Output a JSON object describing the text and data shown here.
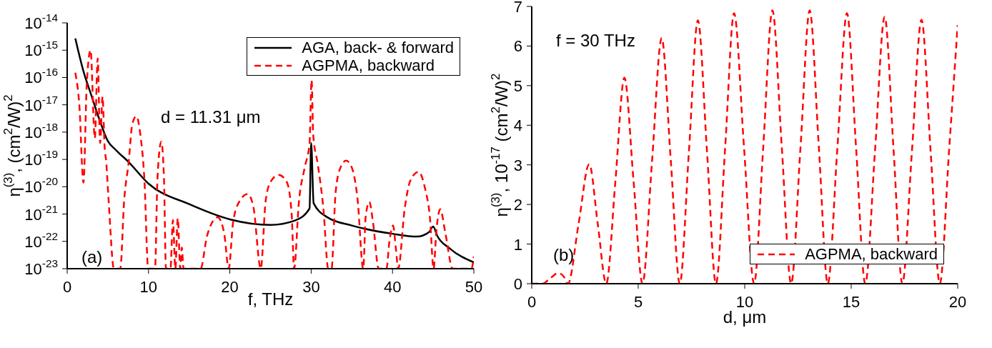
{
  "chart_data": [
    {
      "type": "line",
      "xlabel": "f, THz",
      "ylabel": "η$^{(3)}$, (cm$^{2}$/W)$^{2}$",
      "log": "y",
      "legend": "top right",
      "annotations": [
        "d = 11.31 μm",
        "(a)"
      ],
      "xlim": [
        0,
        50
      ],
      "xticks": [
        0,
        10,
        20,
        30,
        40,
        50
      ],
      "ylim": [
        1e-23,
        1e-14
      ],
      "yticks": [
        {
          "value": 1e-23,
          "label": "10$^{-23}$"
        },
        {
          "value": 1e-22,
          "label": "10$^{-22}$"
        },
        {
          "value": 1e-21,
          "label": "10$^{-21}$"
        },
        {
          "value": 1e-20,
          "label": "10$^{-20}$"
        },
        {
          "value": 1e-19,
          "label": "10$^{-19}$"
        },
        {
          "value": 1e-18,
          "label": "10$^{-18}$"
        },
        {
          "value": 1e-17,
          "label": "10$^{-17}$"
        },
        {
          "value": 1e-16,
          "label": "10$^{-16}$"
        },
        {
          "value": 1e-15,
          "label": "10$^{-15}$"
        },
        {
          "value": 1e-14,
          "label": "10$^{-14}$"
        }
      ],
      "series": [
        {
          "name": "AGA, back- & forward",
          "color": "#000000",
          "line_style": "solid",
          "x": [
            1,
            2,
            3,
            4,
            5,
            6,
            7.56,
            10,
            15,
            20,
            25,
            28,
            29.8,
            30,
            30.3,
            32,
            35,
            40,
            43,
            44.5,
            45,
            45.5,
            47,
            50
          ],
          "values": [
            2.7e-15,
            1.7e-16,
            2.1e-17,
            2.7e-18,
            4.7e-19,
            2.2e-19,
            8e-20,
            1.3e-20,
            2.3e-21,
            6.4e-22,
            4e-22,
            5.8e-22,
            1.6e-21,
            4e-19,
            2.5e-21,
            7.6e-22,
            3.8e-22,
            1.9e-22,
            1.5e-22,
            2.2e-22,
            3.5e-22,
            1.6e-22,
            5.6e-23,
            1.7e-23
          ]
        },
        {
          "name": "AGPMA, backward",
          "color": "#ff0000",
          "line_style": "dashed",
          "x": [
            1,
            1.5,
            2,
            2.4,
            2.87,
            3.4,
            3.75,
            4.05,
            4.35,
            4.6,
            4.8,
            5.1,
            5.75,
            6.53,
            7,
            7.56,
            8,
            8.5,
            9,
            9.5,
            9.96,
            10.8,
            11.1,
            11.57,
            11.9,
            12.15,
            12.7,
            13,
            13.3,
            13.6,
            13.9,
            14.1,
            14.3,
            16.4,
            17.2,
            18.5,
            19.3,
            19.86,
            20.4,
            21.2,
            22.2,
            22.9,
            23.8,
            24.4,
            25,
            26,
            27,
            27.6,
            27.9,
            28.5,
            29.2,
            29.8,
            30.05,
            30.25,
            30.8,
            31.5,
            32.1,
            32.5,
            33,
            33.6,
            34.3,
            35,
            35.7,
            36.4,
            36.7,
            37.15,
            37.6,
            38.3,
            39.26,
            39.6,
            40.07,
            40.4,
            40.7,
            41.5,
            42.2,
            43.2,
            44,
            44.6,
            45.05,
            45.4,
            45.87,
            46.5,
            47.4,
            49.7,
            50
          ],
          "values": [
            1.5e-16,
            9e-18,
            1.4e-20,
            5e-17,
            1e-15,
            6e-19,
            5e-16,
            4e-19,
            2e-17,
            3e-19,
            8e-20,
            3e-21,
            1e-23,
            1e-23,
            3e-21,
            8e-20,
            1.9e-18,
            3.8e-18,
            8e-19,
            1.7e-20,
            1e-23,
            1e-23,
            2e-20,
            4.5e-19,
            2e-20,
            1e-23,
            1e-23,
            6e-22,
            1e-23,
            7e-22,
            1e-23,
            6e-23,
            1e-23,
            1e-23,
            1.6e-22,
            7.6e-22,
            2e-22,
            1e-23,
            5e-22,
            3e-21,
            5.4e-21,
            1.8e-21,
            1e-23,
            3e-21,
            1.5e-20,
            2.7e-20,
            1.5e-20,
            1e-21,
            1e-23,
            3e-21,
            5e-20,
            4e-19,
            8e-17,
            8e-19,
            7e-20,
            1.6e-21,
            1e-23,
            1e-23,
            6e-21,
            5e-20,
            9e-20,
            5e-20,
            3.6e-21,
            1e-23,
            8e-22,
            2.8e-21,
            5e-22,
            1e-23,
            1e-23,
            9e-23,
            3.8e-22,
            6e-23,
            1e-23,
            1.6e-21,
            1.7e-20,
            3.5e-20,
            8.7e-21,
            7.4e-22,
            1e-23,
            2.6e-22,
            1.5e-21,
            2e-22,
            1e-23,
            1e-23,
            2.8e-23
          ]
        }
      ]
    },
    {
      "type": "line",
      "xlabel": "d, μm",
      "ylabel": "η$^{(3)}$, 10$^{-17}$ (cm$^{2}$/W)$^{2}$",
      "legend": "bottom right",
      "annotations": [
        "f = 30 THz",
        "(b)"
      ],
      "xlim": [
        0,
        20
      ],
      "xticks": [
        0,
        5,
        10,
        15,
        20
      ],
      "ylim": [
        0,
        7
      ],
      "yticks": [
        0,
        1,
        2,
        3,
        4,
        5,
        6,
        7
      ],
      "series": [
        {
          "name": "AGPMA, backward",
          "color": "#ff0000",
          "line_style": "dashed",
          "x": [
            0,
            0.5,
            0.9,
            1.25,
            1.5,
            1.7,
            2.2,
            2.7,
            3.1,
            3.5,
            3.93,
            4.35,
            4.78,
            5.2,
            5.65,
            6.1,
            6.53,
            6.95,
            7.38,
            7.8,
            8.23,
            8.65,
            9.08,
            9.5,
            9.97,
            10.44,
            10.87,
            11.3,
            11.74,
            12.18,
            12.62,
            13.05,
            13.48,
            13.9,
            14.35,
            14.8,
            15.23,
            15.66,
            16.12,
            16.57,
            16.99,
            17.4,
            17.85,
            18.3,
            18.73,
            19.16,
            19.6,
            20
          ],
          "values": [
            0,
            0,
            0.15,
            0.27,
            0.18,
            0,
            1.51,
            3.02,
            1.51,
            0,
            2.6,
            5.2,
            2.6,
            0,
            3.1,
            6.2,
            3.1,
            0,
            3.33,
            6.65,
            3.33,
            0,
            3.42,
            6.83,
            3.42,
            0,
            3.45,
            6.9,
            3.45,
            0,
            3.45,
            6.9,
            3.45,
            0,
            3.42,
            6.83,
            3.42,
            0,
            3.37,
            6.74,
            3.37,
            0,
            3.33,
            6.66,
            3.33,
            0,
            3.4,
            6.53
          ]
        }
      ]
    }
  ]
}
